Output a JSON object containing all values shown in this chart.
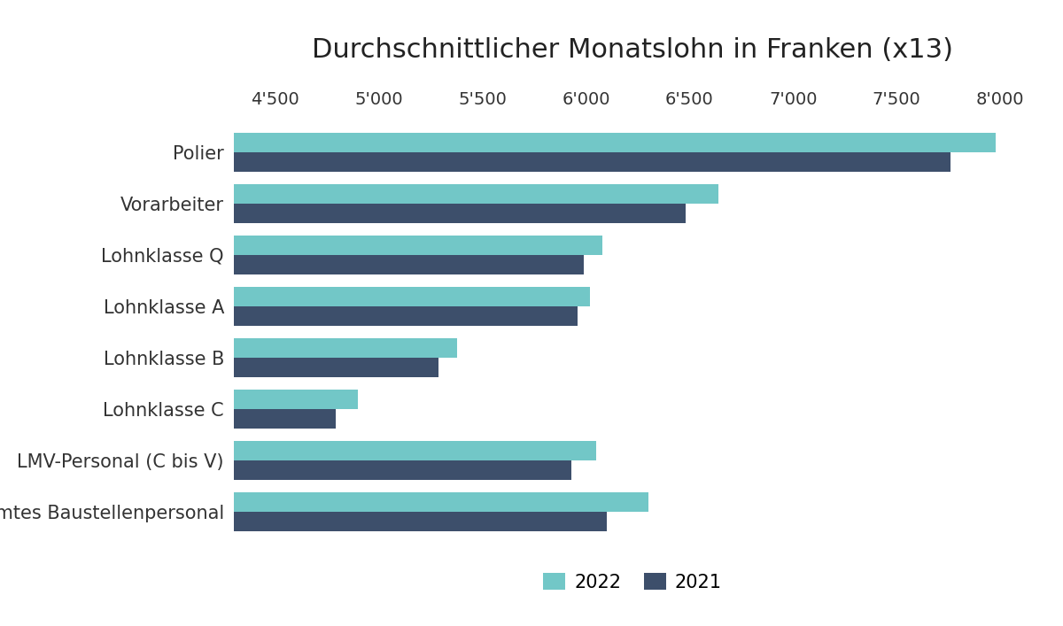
{
  "title": "Durchschnittlicher Monatslohn in Franken (x13)",
  "categories": [
    "Gesamtes Baustellenpersonal",
    "LMV-Personal (C bis V)",
    "Lohnklasse C",
    "Lohnklasse B",
    "Lohnklasse A",
    "Lohnklasse Q",
    "Vorarbeiter",
    "Polier"
  ],
  "values_2022": [
    6300,
    6050,
    4900,
    5380,
    6020,
    6080,
    6640,
    7980
  ],
  "values_2021": [
    6100,
    5930,
    4790,
    5290,
    5960,
    5990,
    6480,
    7760
  ],
  "color_2022": "#72c7c7",
  "color_2021": "#3d4f6b",
  "xlim": [
    4300,
    8150
  ],
  "xticks": [
    4500,
    5000,
    5500,
    6000,
    6500,
    7000,
    7500,
    8000
  ],
  "background_color": "#ffffff",
  "bar_height": 0.38,
  "legend_labels": [
    "2022",
    "2021"
  ],
  "title_fontsize": 22,
  "label_fontsize": 15,
  "tick_fontsize": 14
}
